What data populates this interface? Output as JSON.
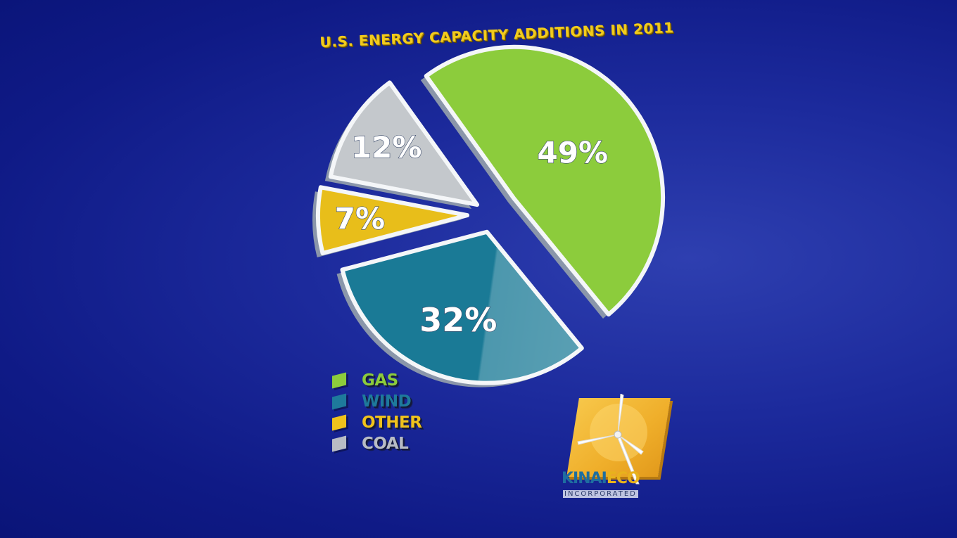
{
  "chart_data": {
    "type": "pie",
    "title": "U.S. ENERGY CAPACITY ADDITIONS IN 2011",
    "slices": [
      {
        "name": "GAS",
        "value": 49,
        "label": "49%",
        "color": "#8ccc3c"
      },
      {
        "name": "WIND",
        "value": 32,
        "label": "32%",
        "color": "#1a7a96"
      },
      {
        "name": "OTHER",
        "value": 7,
        "label": "7%",
        "color": "#e8be1a"
      },
      {
        "name": "COAL",
        "value": 12,
        "label": "12%",
        "color": "#c4c8cc"
      }
    ],
    "legend_position": "bottom-left"
  },
  "legend": [
    {
      "label": "GAS",
      "color": "#8ccc3c"
    },
    {
      "label": "WIND",
      "color": "#1e7a9c"
    },
    {
      "label": "OTHER",
      "color": "#f0c21c"
    },
    {
      "label": "COAL",
      "color": "#b8bcc4"
    }
  ],
  "logo": {
    "brand_part1": "KINAI",
    "brand_part2": "ECO",
    "subtitle": "INCORPORATED",
    "icon": "wind-turbine-icon"
  }
}
